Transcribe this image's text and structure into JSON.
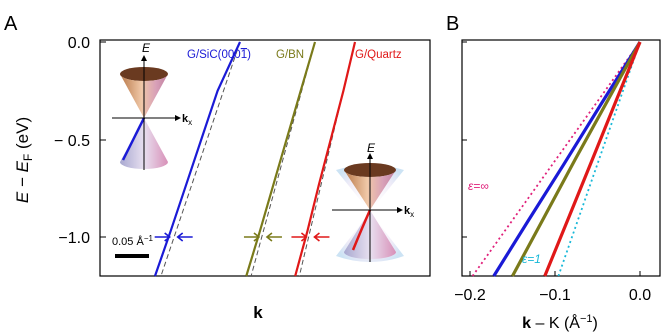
{
  "colors": {
    "blue": "#1a1ad6",
    "olive": "#7a7a1a",
    "red": "#e01818",
    "magenta": "#e0207a",
    "cyan": "#18b8d8"
  },
  "chart_data": [
    {
      "type": "line",
      "panel_label": "A",
      "xlabel": "k",
      "ylabel_main": "E − E",
      "ylabel_sub": "F",
      "ylabel_unit": " (eV)",
      "ylim": [
        -1.2,
        0.0
      ],
      "yticks": [
        0.0,
        -0.5,
        -1.0
      ],
      "ytick_labels": [
        "0.0",
        "− 0.5",
        "−1.0"
      ],
      "x_axis_ticks_labeled": false,
      "scale_bar": {
        "label": "0.05 Å",
        "label_sup": "−1",
        "length_inv_angstrom": 0.05
      },
      "series": [
        {
          "name": "G/SiC(000",
          "name_tail": "1",
          "name_end": ")",
          "color": "blue",
          "x": [
            -0.125,
            -0.102,
            -0.079,
            -0.056,
            -0.033,
            0.0
          ],
          "y": [
            -1.2,
            -0.97,
            -0.73,
            -0.49,
            -0.25,
            0.0
          ]
        },
        {
          "name": "G/BN",
          "color": "olive",
          "x": [
            -0.101,
            -0.081,
            -0.061,
            -0.041,
            -0.021,
            0.0
          ],
          "y": [
            -1.2,
            -0.97,
            -0.73,
            -0.49,
            -0.25,
            0.0
          ]
        },
        {
          "name": "G/Quartz",
          "color": "red",
          "x": [
            -0.088,
            -0.07,
            -0.053,
            -0.035,
            -0.017,
            0.0
          ],
          "y": [
            -1.2,
            -0.97,
            -0.73,
            -0.49,
            -0.25,
            0.0
          ]
        }
      ],
      "insets": [
        {
          "axis_label": "E",
          "k_label": "k",
          "k_sub": "x"
        },
        {
          "axis_label": "E",
          "k_label": "k",
          "k_sub": "x"
        }
      ]
    },
    {
      "type": "line",
      "panel_label": "B",
      "xlabel_bold": "k",
      "xlabel_rest": " – K (Å",
      "xlabel_sup": "−1",
      "xlabel_end": ")",
      "xlim": [
        -0.2,
        0.01
      ],
      "ylim": [
        -1.2,
        0.0
      ],
      "xticks": [
        -0.2,
        -0.1,
        0.0
      ],
      "xtick_labels": [
        "−0.2",
        "−0.1",
        "0.0"
      ],
      "series": [
        {
          "color": "blue",
          "x": [
            -0.172,
            -0.132,
            -0.09,
            -0.046,
            0.0
          ],
          "y": [
            -1.2,
            -0.92,
            -0.63,
            -0.32,
            0.0
          ]
        },
        {
          "color": "olive",
          "x": [
            -0.15,
            -0.113,
            -0.076,
            -0.038,
            0.0
          ],
          "y": [
            -1.2,
            -0.9,
            -0.6,
            -0.3,
            0.0
          ]
        },
        {
          "color": "red",
          "x": [
            -0.112,
            -0.083,
            -0.055,
            -0.027,
            0.0
          ],
          "y": [
            -1.2,
            -0.89,
            -0.59,
            -0.29,
            0.0
          ]
        }
      ],
      "guides": [
        {
          "label": "ε=∞",
          "color": "magenta",
          "x": [
            -0.197,
            0.0
          ],
          "y": [
            -1.2,
            0.0
          ]
        },
        {
          "label": "ε=1",
          "color": "cyan",
          "x": [
            -0.096,
            0.0
          ],
          "y": [
            -1.2,
            0.0
          ]
        }
      ]
    }
  ]
}
